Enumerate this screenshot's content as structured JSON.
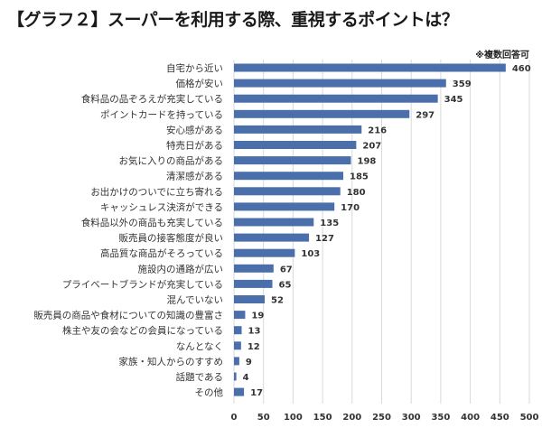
{
  "chart_data": {
    "type": "bar",
    "orientation": "horizontal",
    "title": "【グラフ２】スーパーを利用する際、重視するポイントは？",
    "note": "※複数回答可",
    "categories": [
      "自宅から近い",
      "価格が安い",
      "食料品の品ぞろえが充実している",
      "ポイントカードを持っている",
      "安心感がある",
      "特売日がある",
      "お気に入りの商品がある",
      "清潔感がある",
      "お出かけのついでに立ち寄れる",
      "キャッシュレス決済ができる",
      "食料品以外の商品も充実している",
      "販売員の接客態度が良い",
      "高品質な商品がそろっている",
      "施設内の通路が広い",
      "プライベートブランドが充実している",
      "混んでいない",
      "販売員の商品や食材についての知識の豊富さ",
      "株主や友の会などの会員になっている",
      "なんとなく",
      "家族・知人からのすすめ",
      "話題である",
      "その他"
    ],
    "values": [
      460,
      359,
      345,
      297,
      216,
      207,
      198,
      185,
      180,
      170,
      135,
      127,
      103,
      67,
      65,
      52,
      19,
      13,
      12,
      9,
      4,
      17
    ],
    "xlim": [
      0,
      500
    ],
    "xticks": [
      "0",
      "50",
      "100",
      "150",
      "200",
      "250",
      "300",
      "350",
      "400",
      "450",
      "500"
    ],
    "grid": true,
    "bar_color": "#4a6fab"
  }
}
